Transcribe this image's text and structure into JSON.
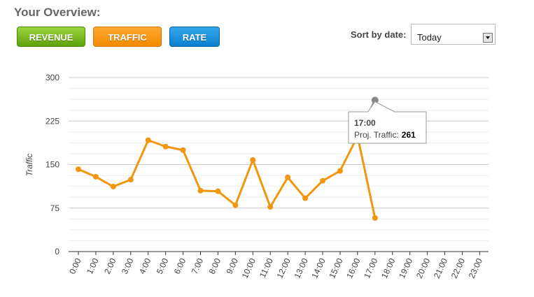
{
  "header": {
    "title": "Your Overview:",
    "buttons": [
      "REVENUE",
      "TRAFFIC",
      "RATE"
    ],
    "sort_label": "Sort by date:",
    "sort_value": "Today"
  },
  "chart_data": {
    "type": "line",
    "y_label": "Traffic",
    "categories": [
      "0:00",
      "1:00",
      "2:00",
      "3:00",
      "4:00",
      "5:00",
      "6:00",
      "7:00",
      "8:00",
      "9:00",
      "10:00",
      "11:00",
      "12:00",
      "13:00",
      "14:00",
      "15:00",
      "16:00",
      "17:00",
      "18:00",
      "19:00",
      "20:00",
      "21:00",
      "22:00",
      "23:00"
    ],
    "series": [
      {
        "name": "Traffic",
        "color": "#f0960f",
        "values": [
          142,
          129,
          112,
          124,
          192,
          181,
          175,
          105,
          104,
          80,
          158,
          77,
          128,
          92,
          122,
          139,
          199,
          58,
          null,
          null,
          null,
          null,
          null,
          null
        ]
      },
      {
        "name": "Proj. Traffic",
        "color": "#888888",
        "values": [
          null,
          null,
          null,
          null,
          null,
          null,
          null,
          null,
          null,
          null,
          null,
          null,
          null,
          null,
          null,
          null,
          199,
          261,
          null,
          null,
          null,
          null,
          null,
          null
        ]
      }
    ],
    "ylim": [
      0,
      300
    ],
    "yticks": [
      0,
      75,
      150,
      225,
      300
    ],
    "grid": true,
    "tooltip": {
      "title": "17:00",
      "label": "Proj. Traffic:"
    }
  }
}
